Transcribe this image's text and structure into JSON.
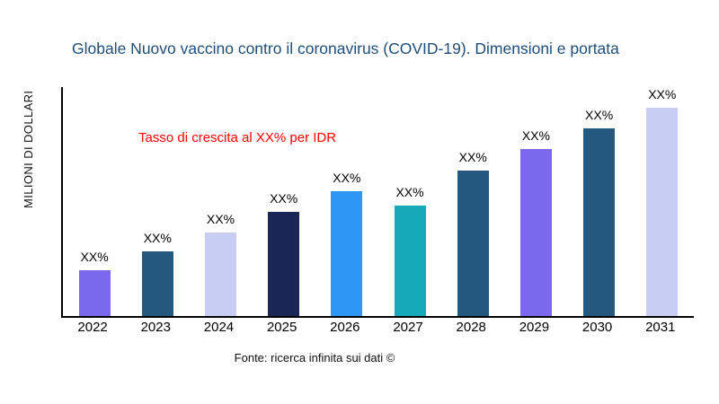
{
  "title": "Globale Nuovo vaccino contro il coronavirus (COVID-19). Dimensioni e portata",
  "ylabel": "MILIONI DI DOLLARI",
  "annotation": "Tasso di crescita al XX% per IDR",
  "source": "Fonte: ricerca infinita sui dati ©",
  "colors": {
    "title": "#1F4E79",
    "annotation": "#FF0000",
    "axis": "#000000"
  },
  "chart_data": {
    "type": "bar",
    "title": "Globale Nuovo vaccino contro il coronavirus (COVID-19). Dimensioni e portata",
    "xlabel": "",
    "ylabel": "MILIONI DI DOLLARI",
    "categories": [
      "2022",
      "2023",
      "2024",
      "2025",
      "2026",
      "2027",
      "2028",
      "2029",
      "2030",
      "2031"
    ],
    "values": [
      22,
      31,
      40,
      50,
      60,
      53,
      70,
      80,
      90,
      100
    ],
    "bar_labels": [
      "XX%",
      "XX%",
      "XX%",
      "XX%",
      "XX%",
      "XX%",
      "XX%",
      "XX%",
      "XX%",
      "XX%"
    ],
    "bar_colors": [
      "#7C68EE",
      "#24587E",
      "#C8CDF4",
      "#1B2556",
      "#2D96F4",
      "#16A9B8",
      "#24587E",
      "#7C68EE",
      "#24587E",
      "#C8CDF4"
    ],
    "ylim": [
      0,
      100
    ],
    "grid": false,
    "legend": false,
    "annotations": [
      "Tasso di crescita al XX% per IDR"
    ]
  }
}
